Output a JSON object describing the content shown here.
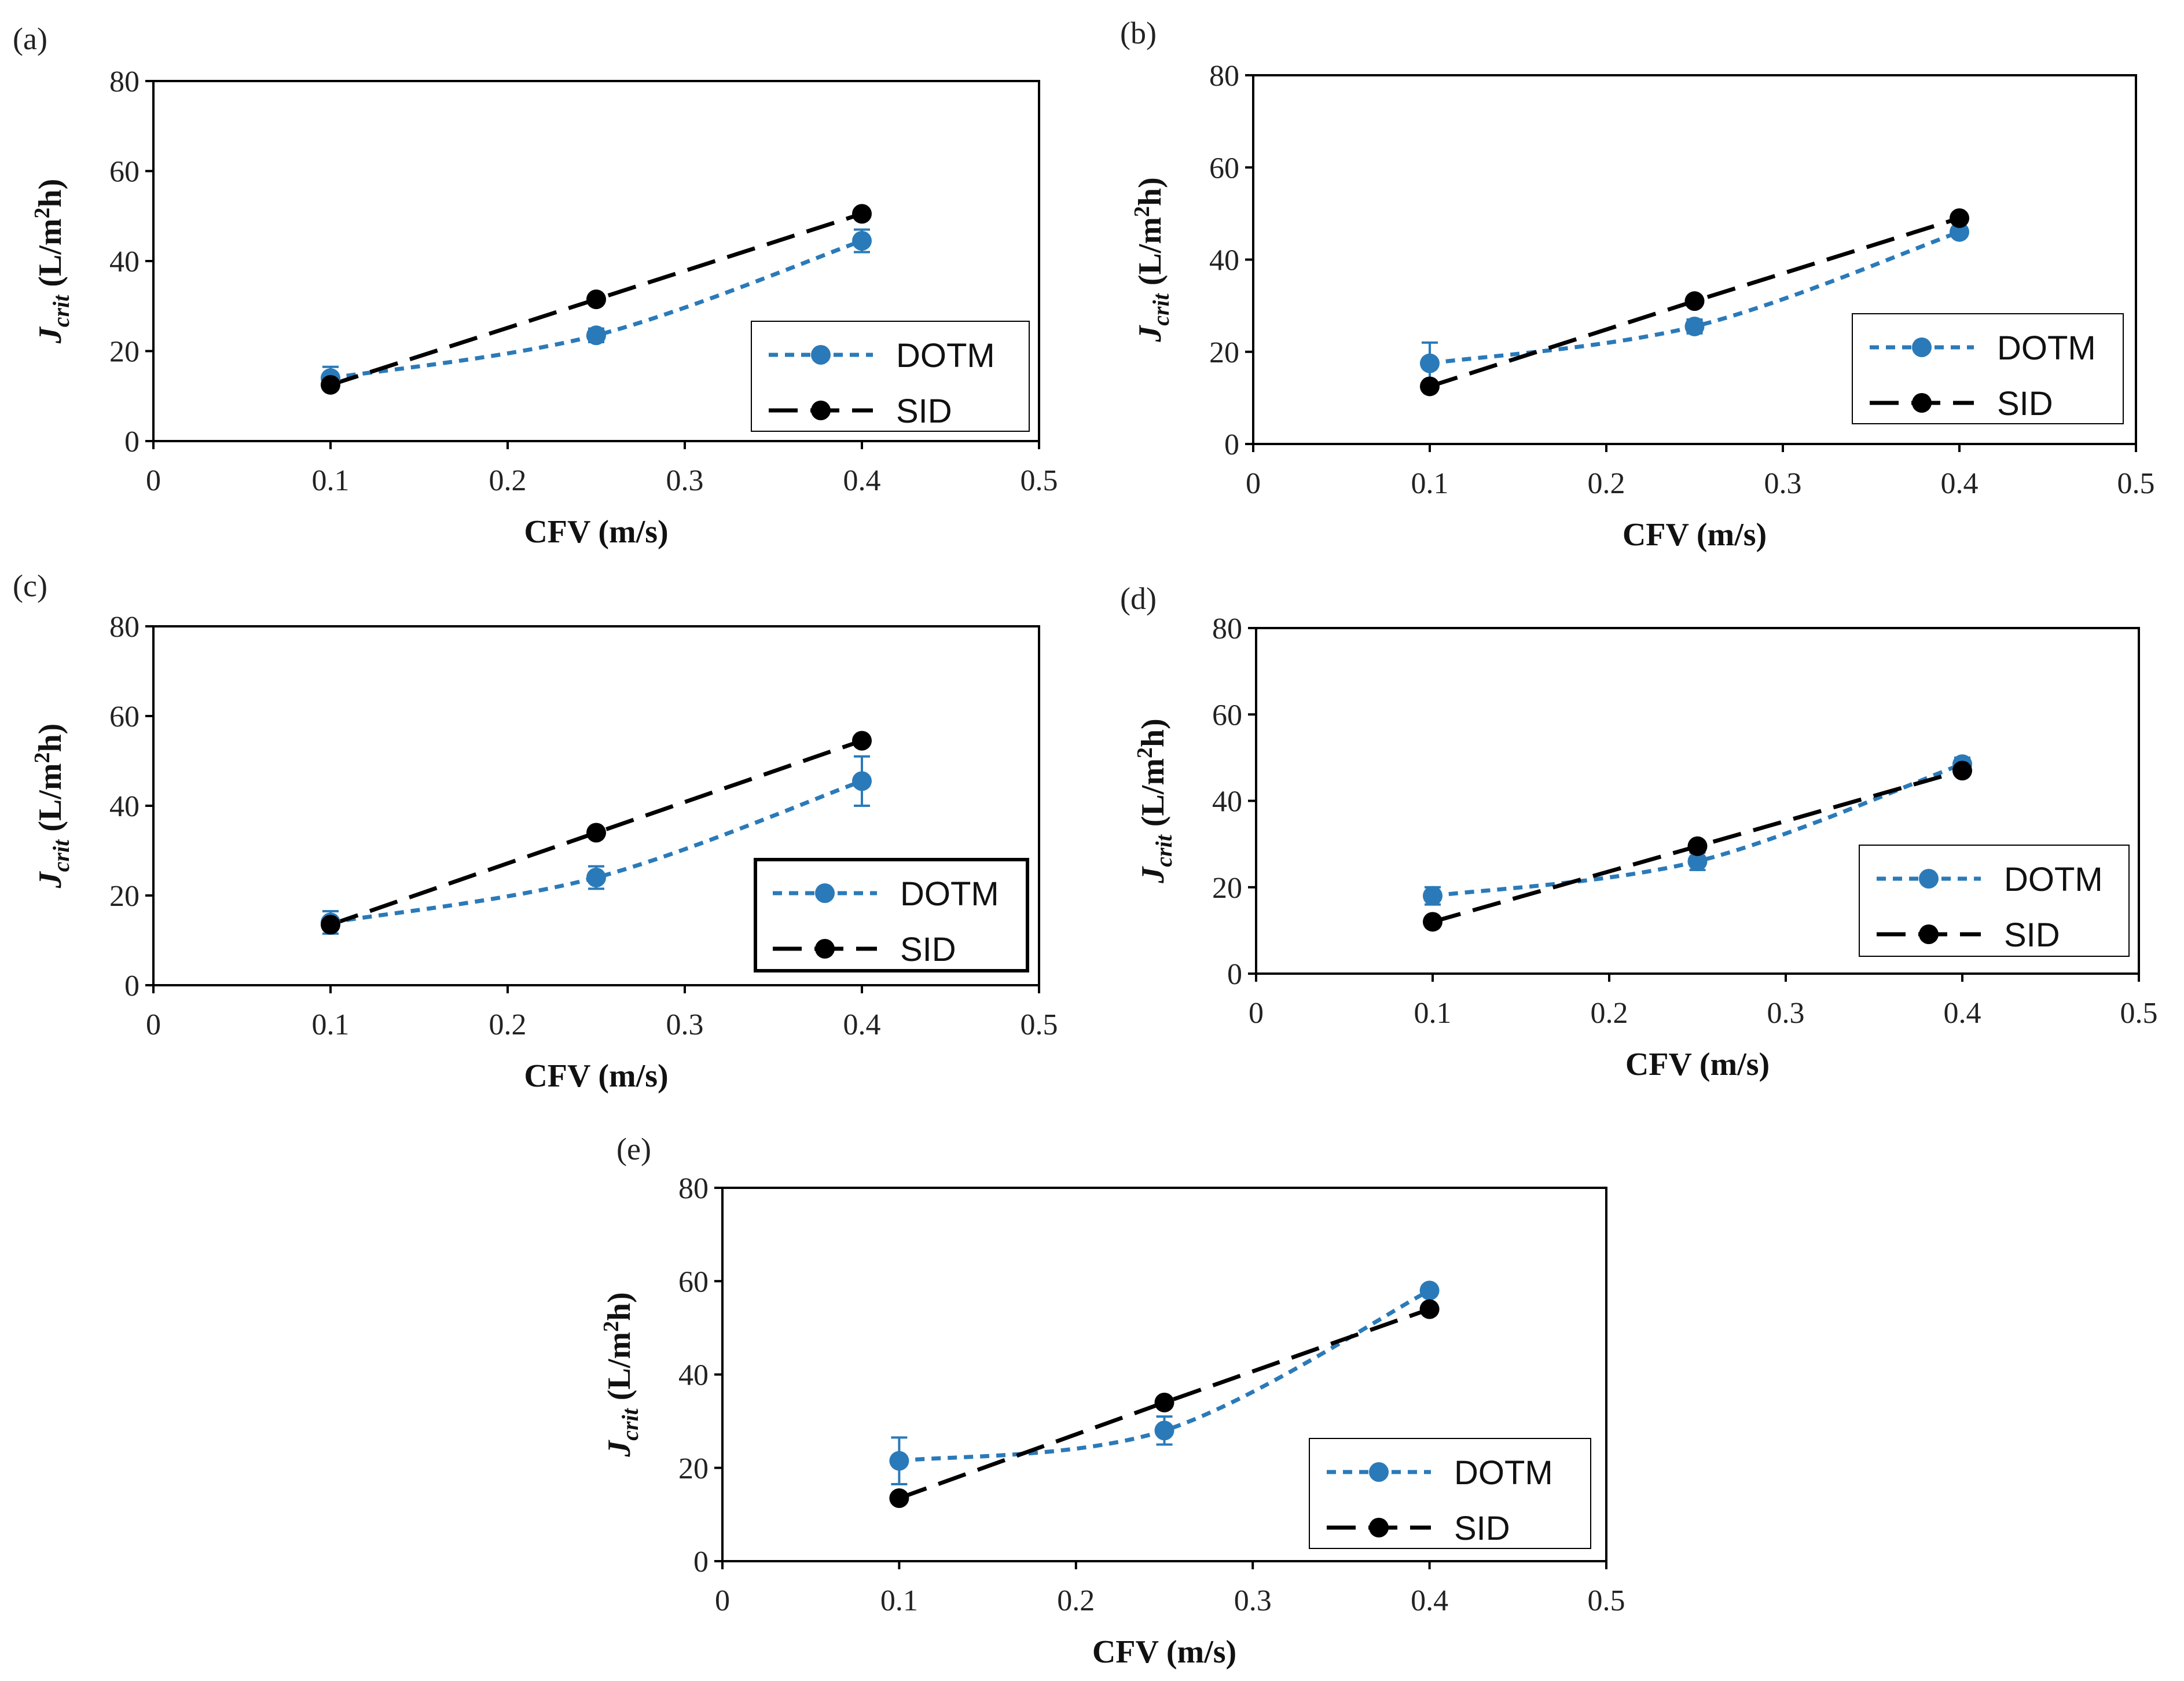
{
  "chart_data": [
    {
      "label": "(a)",
      "type": "line",
      "xlabel": "CFV (m/s)",
      "ylabel": {
        "symbol": "J",
        "subscript": "crit",
        "unit_pre": "(L/m",
        "unit_sup": "2",
        "unit_post": "h)"
      },
      "xlim": [
        0,
        0.5
      ],
      "ylim": [
        0,
        80
      ],
      "xticks": [
        "0",
        "0.1",
        "0.2",
        "0.3",
        "0.4",
        "0.5"
      ],
      "yticks": [
        "0",
        "20",
        "40",
        "60",
        "80"
      ],
      "legend_position": "lower-right",
      "series": [
        {
          "name": "DOTM",
          "color": "#2a7ab9",
          "line": "short-dash",
          "x": [
            0.1,
            0.25,
            0.4
          ],
          "y": [
            14,
            23.5,
            44.5
          ],
          "err": [
            2.5,
            1.5,
            2.5
          ]
        },
        {
          "name": "SID",
          "color": "#000000",
          "line": "long-dash",
          "x": [
            0.1,
            0.25,
            0.4
          ],
          "y": [
            12.5,
            31.5,
            50.5
          ]
        }
      ]
    },
    {
      "label": "(b)",
      "type": "line",
      "xlabel": "CFV (m/s)",
      "ylabel": {
        "symbol": "J",
        "subscript": "crit",
        "unit_pre": "(L/m",
        "unit_sup": "2",
        "unit_post": "h)"
      },
      "xlim": [
        0,
        0.5
      ],
      "ylim": [
        0,
        80
      ],
      "xticks": [
        "0",
        "0.1",
        "0.2",
        "0.3",
        "0.4",
        "0.5"
      ],
      "yticks": [
        "0",
        "20",
        "40",
        "60",
        "80"
      ],
      "legend_position": "lower-right",
      "series": [
        {
          "name": "DOTM",
          "color": "#2a7ab9",
          "line": "short-dash",
          "x": [
            0.1,
            0.25,
            0.4
          ],
          "y": [
            17.5,
            25.5,
            46
          ],
          "err": [
            4.5,
            1.5,
            1
          ]
        },
        {
          "name": "SID",
          "color": "#000000",
          "line": "long-dash",
          "x": [
            0.1,
            0.25,
            0.4
          ],
          "y": [
            12.5,
            31,
            49
          ]
        }
      ]
    },
    {
      "label": "(c)",
      "type": "line",
      "xlabel": "CFV (m/s)",
      "ylabel": {
        "symbol": "J",
        "subscript": "crit",
        "unit_pre": "(L/m",
        "unit_sup": "2",
        "unit_post": "h)"
      },
      "xlim": [
        0,
        0.5
      ],
      "ylim": [
        0,
        80
      ],
      "xticks": [
        "0",
        "0.1",
        "0.2",
        "0.3",
        "0.4",
        "0.5"
      ],
      "yticks": [
        "0",
        "20",
        "40",
        "60",
        "80"
      ],
      "legend_position": "lower-right",
      "series": [
        {
          "name": "DOTM",
          "color": "#2a7ab9",
          "line": "short-dash",
          "x": [
            0.1,
            0.25,
            0.4
          ],
          "y": [
            14,
            24,
            45.5
          ],
          "err": [
            2.5,
            2.5,
            5.5
          ]
        },
        {
          "name": "SID",
          "color": "#000000",
          "line": "long-dash",
          "x": [
            0.1,
            0.25,
            0.4
          ],
          "y": [
            13.5,
            34,
            54.5
          ]
        }
      ]
    },
    {
      "label": "(d)",
      "type": "line",
      "xlabel": "CFV (m/s)",
      "ylabel": {
        "symbol": "J",
        "subscript": "crit",
        "unit_pre": "(L/m",
        "unit_sup": "2",
        "unit_post": "h)"
      },
      "xlim": [
        0,
        0.5
      ],
      "ylim": [
        0,
        80
      ],
      "xticks": [
        "0",
        "0.1",
        "0.2",
        "0.3",
        "0.4",
        "0.5"
      ],
      "yticks": [
        "0",
        "20",
        "40",
        "60",
        "80"
      ],
      "legend_position": "lower-right",
      "series": [
        {
          "name": "DOTM",
          "color": "#2a7ab9",
          "line": "short-dash",
          "x": [
            0.1,
            0.25,
            0.4
          ],
          "y": [
            18,
            26,
            48.5
          ],
          "err": [
            2,
            2,
            1.5
          ]
        },
        {
          "name": "SID",
          "color": "#000000",
          "line": "long-dash",
          "x": [
            0.1,
            0.25,
            0.4
          ],
          "y": [
            12,
            29.5,
            47
          ]
        }
      ]
    },
    {
      "label": "(e)",
      "type": "line",
      "xlabel": "CFV (m/s)",
      "ylabel": {
        "symbol": "J",
        "subscript": "crit",
        "unit_pre": "(L/m",
        "unit_sup": "2",
        "unit_post": "h)"
      },
      "xlim": [
        0,
        0.5
      ],
      "ylim": [
        0,
        80
      ],
      "xticks": [
        "0",
        "0.1",
        "0.2",
        "0.3",
        "0.4",
        "0.5"
      ],
      "yticks": [
        "0",
        "20",
        "40",
        "60",
        "80"
      ],
      "legend_position": "lower-right",
      "series": [
        {
          "name": "DOTM",
          "color": "#2a7ab9",
          "line": "short-dash",
          "x": [
            0.1,
            0.25,
            0.4
          ],
          "y": [
            21.5,
            28,
            58
          ],
          "err": [
            5,
            3,
            1
          ]
        },
        {
          "name": "SID",
          "color": "#000000",
          "line": "long-dash",
          "x": [
            0.1,
            0.25,
            0.4
          ],
          "y": [
            13.5,
            34,
            54
          ]
        }
      ]
    }
  ]
}
